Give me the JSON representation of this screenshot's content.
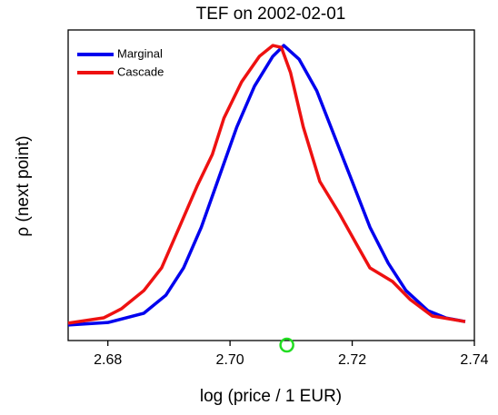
{
  "chart_data": {
    "type": "line",
    "title": "TEF on 2002-02-01",
    "x_label": "log (price / 1 EUR)",
    "y_label": "ρ (next point)",
    "xlim": [
      2.6735,
      2.74
    ],
    "ylim": [
      0,
      1
    ],
    "xticks": [
      2.68,
      {
        "value": 2.7,
        "label": "2.70"
      },
      2.72,
      2.74
    ],
    "legend": "top-left",
    "series": [
      {
        "name": "Marginal",
        "color": "#0000ee",
        "x": [
          2.6735,
          2.68,
          2.6859,
          2.6895,
          2.6924,
          2.6953,
          2.6982,
          2.7011,
          2.704,
          2.707,
          2.7088,
          2.7113,
          2.7142,
          2.7171,
          2.72,
          2.7229,
          2.7259,
          2.7288,
          2.7324,
          2.7353,
          2.7385
        ],
        "values": [
          0.05,
          0.058,
          0.088,
          0.146,
          0.234,
          0.365,
          0.526,
          0.687,
          0.819,
          0.915,
          0.95,
          0.906,
          0.804,
          0.658,
          0.512,
          0.365,
          0.249,
          0.161,
          0.096,
          0.073,
          0.061
        ]
      },
      {
        "name": "Cascade",
        "color": "#ee1111",
        "x": [
          2.6735,
          2.6793,
          2.6822,
          2.6859,
          2.6888,
          2.6917,
          2.6946,
          2.6971,
          2.699,
          2.7019,
          2.7048,
          2.707,
          2.7084,
          2.7099,
          2.712,
          2.7147,
          2.7179,
          2.7208,
          2.7229,
          2.7266,
          2.7295,
          2.7331,
          2.7385
        ],
        "values": [
          0.056,
          0.073,
          0.102,
          0.161,
          0.234,
          0.365,
          0.497,
          0.599,
          0.716,
          0.833,
          0.915,
          0.95,
          0.944,
          0.863,
          0.687,
          0.512,
          0.409,
          0.307,
          0.234,
          0.19,
          0.132,
          0.079,
          0.061
        ]
      }
    ],
    "marker": {
      "x": 2.7093,
      "color": "#22dd22"
    }
  }
}
